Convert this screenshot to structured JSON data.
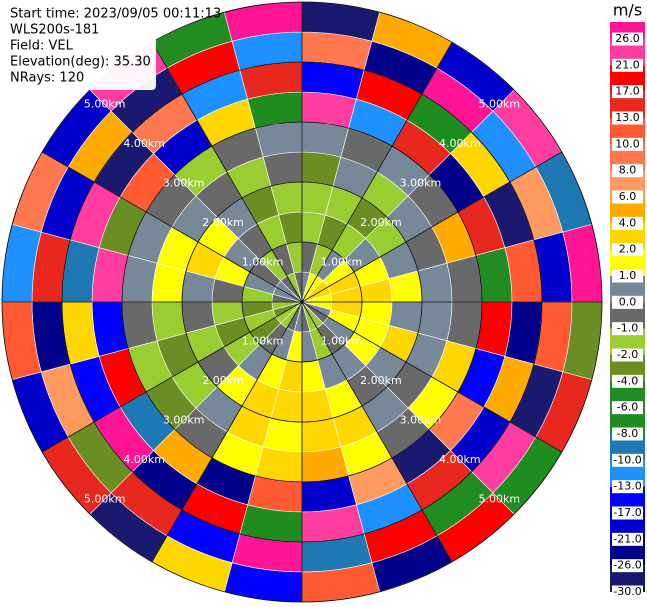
{
  "chart_data": {
    "type": "ppi",
    "info": [
      "Start time: 2023/09/05 00:11:13",
      "WLS200s-181",
      "Field: VEL",
      "Elevation(deg): 35.30",
      "NRays: 120"
    ],
    "azimuth": [
      0,
      15,
      30,
      45,
      60,
      75,
      90,
      105,
      120,
      135,
      150,
      165,
      180,
      195,
      210,
      225,
      240,
      255,
      270,
      285,
      300,
      315,
      330,
      345
    ],
    "range_edges_km": [
      0,
      0.5,
      1,
      1.5,
      2,
      2.5,
      3,
      3.5,
      4,
      4.5,
      5
    ],
    "rlim": [
      0,
      5
    ],
    "rticks": [
      {
        "value": 1,
        "label": "1.00km"
      },
      {
        "value": 2,
        "label": "2.00km"
      },
      {
        "value": 3,
        "label": "3.00km"
      },
      {
        "value": 4,
        "label": "4.00km"
      },
      {
        "value": 5,
        "label": "5.00km"
      }
    ],
    "values": [
      [
        0.5,
        -0.5,
        -1.5,
        -1.5,
        -3,
        0.5,
        23,
        -15,
        9,
        -27
      ],
      [
        1.5,
        -1.5,
        -3,
        -1.5,
        0.5,
        -0.5,
        -11,
        18,
        -24,
        5
      ],
      [
        1.5,
        0.5,
        -1.5,
        -3,
        -1.5,
        0.5,
        14,
        -7,
        27,
        -19
      ],
      [
        3,
        1.5,
        0.5,
        -1.5,
        0.5,
        -0.5,
        -22,
        3,
        -12,
        24
      ],
      [
        3,
        3,
        1.5,
        0.5,
        -0.5,
        5,
        16,
        -28,
        7,
        -9
      ],
      [
        1.5,
        3,
        3,
        1.5,
        0.5,
        -0.5,
        -5,
        11,
        -18,
        28
      ],
      [
        1.5,
        3,
        1.5,
        0.5,
        0.5,
        -0.5,
        19,
        -23,
        12,
        -3
      ],
      [
        0.5,
        1.5,
        1.5,
        3,
        0.5,
        3,
        -14,
        6,
        -26,
        15
      ],
      [
        -0.5,
        0.5,
        1.5,
        0.5,
        -0.5,
        1.5,
        9,
        -19,
        22,
        -7
      ],
      [
        -1.5,
        -0.5,
        0.5,
        -0.5,
        0.5,
        -0.5,
        -27,
        14,
        -4,
        20
      ],
      [
        -1.5,
        -1.5,
        0.5,
        1.5,
        3,
        1.5,
        7,
        -11,
        18,
        -24
      ],
      [
        -0.5,
        0.5,
        1.5,
        3,
        3,
        5,
        -18,
        25,
        -9,
        11
      ],
      [
        0.5,
        1.5,
        3,
        3,
        1.5,
        3,
        12,
        -6,
        29,
        -15
      ],
      [
        -0.5,
        0.5,
        1.5,
        3,
        3,
        1.5,
        -25,
        19,
        -13,
        4
      ],
      [
        -1.5,
        -0.5,
        0.5,
        1.5,
        0.5,
        -0.5,
        5,
        -21,
        15,
        -29
      ],
      [
        -1.5,
        -3,
        -1.5,
        -0.5,
        -1.5,
        -3,
        -9,
        27,
        -2,
        17
      ],
      [
        -3,
        -1.5,
        -3,
        -1.5,
        -3,
        -1.5,
        21,
        -14,
        8,
        -20
      ],
      [
        -1.5,
        -3,
        -1.5,
        -0.5,
        -1.5,
        -0.5,
        -16,
        3,
        -23,
        13
      ],
      [
        -0.5,
        -1.5,
        -0.5,
        0.5,
        1.5,
        0.5,
        26,
        -8,
        16,
        -12
      ],
      [
        0.5,
        0.5,
        1.5,
        3,
        1.5,
        0.5,
        -3,
        22,
        -17,
        9
      ],
      [
        0.5,
        -0.5,
        0.5,
        1.5,
        0.5,
        -0.5,
        13,
        -26,
        5,
        -18
      ],
      [
        -0.5,
        -1.5,
        -0.5,
        0.5,
        -0.5,
        -1.5,
        -20,
        10,
        -29,
        24
      ],
      [
        -1.5,
        -0.5,
        -1.5,
        -3,
        -1.5,
        -0.5,
        4,
        -12,
        20,
        -5
      ],
      [
        -0.5,
        -1.5,
        -3,
        -1.5,
        -0.5,
        0.5,
        -7,
        17,
        -10,
        27
      ]
    ],
    "colorbar": {
      "title": "m/s",
      "ticks": [
        {
          "value": 26,
          "label": "26.0"
        },
        {
          "value": 21,
          "label": "21.0"
        },
        {
          "value": 17,
          "label": "17.0"
        },
        {
          "value": 13,
          "label": "13.0"
        },
        {
          "value": 10,
          "label": "10.0"
        },
        {
          "value": 8,
          "label": "8.0"
        },
        {
          "value": 6,
          "label": "6.0"
        },
        {
          "value": 4,
          "label": "4.0"
        },
        {
          "value": 2,
          "label": "2.0"
        },
        {
          "value": 1,
          "label": "1.0"
        },
        {
          "value": 0,
          "label": "0.0"
        },
        {
          "value": -1,
          "label": "-1.0"
        },
        {
          "value": -2,
          "label": "-2.0"
        },
        {
          "value": -4,
          "label": "-4.0"
        },
        {
          "value": -6,
          "label": "-6.0"
        },
        {
          "value": -8,
          "label": "-8.0"
        },
        {
          "value": -10,
          "label": "-10.0"
        },
        {
          "value": -13,
          "label": "-13.0"
        },
        {
          "value": -17,
          "label": "-17.0"
        },
        {
          "value": -21,
          "label": "-21.0"
        },
        {
          "value": -26,
          "label": "-26.0"
        },
        {
          "value": -30,
          "label": "-30.0"
        }
      ],
      "colors": [
        "#ff1493",
        "#ff3ca0",
        "#ff0000",
        "#e8281e",
        "#ff5a32",
        "#ff7850",
        "#ff9a60",
        "#ffaa00",
        "#ffd700",
        "#ffff00",
        "#778899",
        "#696969",
        "#9acd32",
        "#6b8e23",
        "#228b22",
        "#1e8c1e",
        "#1e78b4",
        "#1e90ff",
        "#0000ff",
        "#0000cd",
        "#00008b",
        "#191970"
      ]
    }
  }
}
